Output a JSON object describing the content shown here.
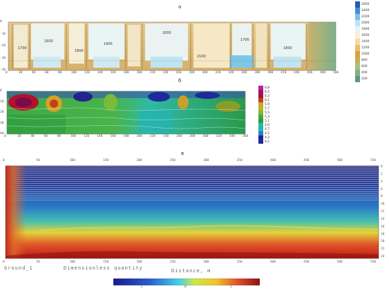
{
  "panels": {
    "a": {
      "label": "а",
      "x_ticks": [
        "0",
        "20",
        "40",
        "60",
        "80",
        "100",
        "120",
        "140",
        "160",
        "180",
        "200",
        "220",
        "240",
        "260",
        "280",
        "300",
        "320",
        "340",
        "360",
        "380",
        "400",
        "420",
        "440",
        "460",
        "480",
        "500"
      ],
      "y_ticks": [
        "0",
        "-10",
        "-20",
        "-30",
        "-40"
      ],
      "legend": [
        "2600",
        "2400",
        "2200",
        "2000",
        "1800",
        "1600",
        "1400",
        "1200",
        "1000",
        "800",
        "600",
        "400",
        "200"
      ],
      "contour_labels": [
        "1700",
        "1600",
        "1800",
        "1900",
        "2000",
        "2100",
        "1700",
        "1800"
      ]
    },
    "b": {
      "label": "б",
      "x_ticks": [
        "0",
        "20",
        "40",
        "60",
        "80",
        "100",
        "120",
        "140",
        "160",
        "180",
        "200",
        "220",
        "240",
        "260",
        "280",
        "300",
        "320",
        "340",
        "360"
      ],
      "y_ticks": [
        "0",
        "10",
        "20",
        "30",
        "40"
      ],
      "legend": [
        "6,8",
        "6,5",
        "6,3",
        "6,1",
        "5,9",
        "5,7",
        "5,5",
        "5,3",
        "5,1",
        "4,9",
        "4,7",
        "4,5",
        "4,3",
        "4,1"
      ]
    },
    "c": {
      "label": "в",
      "x_ticks_top": [
        "0",
        "50",
        "100",
        "150",
        "200",
        "250",
        "300",
        "350",
        "400",
        "450",
        "500",
        "550"
      ],
      "x_ticks_bottom": [
        "0",
        "50",
        "100",
        "150",
        "200",
        "250",
        "300",
        "350",
        "400",
        "450",
        "500",
        "550"
      ],
      "right_ticks": [
        "0",
        "2",
        "4",
        "6",
        "8",
        "10",
        "12",
        "14",
        "16",
        "18",
        "20",
        "22",
        "24"
      ],
      "bottom_left_text": "Ground_1",
      "bottom_mid_text": "Dimensionless quantity",
      "bottom_axis_title": "Distance, m",
      "colorbar_ticks": [
        "-1",
        "0",
        "1"
      ]
    }
  },
  "colors": {
    "seismic_low": "#f3e6c6",
    "seismic_high": "#dff3f7",
    "resistivity_high": "#a0117a",
    "resistivity_low": "#2a2a9a",
    "gpr_hot": "#b81a12",
    "gpr_cold": "#1a2a8c"
  }
}
